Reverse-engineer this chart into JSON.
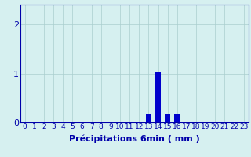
{
  "hours": [
    0,
    1,
    2,
    3,
    4,
    5,
    6,
    7,
    8,
    9,
    10,
    11,
    12,
    13,
    14,
    15,
    16,
    17,
    18,
    19,
    20,
    21,
    22,
    23
  ],
  "values": [
    0,
    0,
    0,
    0,
    0,
    0,
    0,
    0,
    0,
    0,
    0,
    0,
    0,
    0.18,
    1.02,
    0.18,
    0.18,
    0,
    0,
    0,
    0,
    0,
    0,
    0
  ],
  "bar_color": "#0000cc",
  "background_color": "#d6f0f0",
  "grid_color": "#aacece",
  "axis_color": "#0000aa",
  "xlabel": "Précipitations 6min ( mm )",
  "ylim": [
    0,
    2.4
  ],
  "yticks": [
    0,
    1,
    2
  ],
  "xlabel_fontsize": 8,
  "tick_fontsize": 6.5
}
